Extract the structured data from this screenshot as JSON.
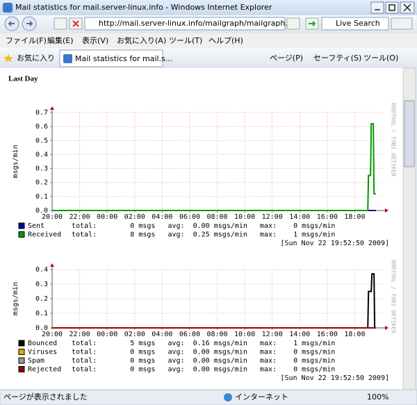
{
  "window": {
    "title": "Mail statistics for mail.server-linux.info - Windows Internet Explorer"
  },
  "address_bar": {
    "url": "http://mail.server-linux.info/mailgraph/mailgraph.cgi",
    "search": "Live Search"
  },
  "menu": [
    "ファイル(F)",
    "編集(E)",
    "表示(V)",
    "お気に入り(A)",
    "ツール(T)",
    "ヘルプ(H)"
  ],
  "favorites_bar": {
    "favorites": "お気に入り",
    "tab": "Mail statistics for mail.s...",
    "tools": [
      "ページ(P)",
      "セーフティ(S)",
      "ツール(O)"
    ]
  },
  "page": {
    "heading": "Last Day"
  },
  "chart_data": [
    {
      "type": "line",
      "ylabel": "msgs/min",
      "watermark": "RRDTOOL / TOBI OETIKER",
      "grid": true,
      "xlim": [
        0,
        24
      ],
      "xticks": [
        {
          "value": 0,
          "label": "20:00"
        },
        {
          "value": 2,
          "label": "22:00"
        },
        {
          "value": 4,
          "label": "00:00"
        },
        {
          "value": 6,
          "label": "02:00"
        },
        {
          "value": 8,
          "label": "04:00"
        },
        {
          "value": 10,
          "label": "06:00"
        },
        {
          "value": 12,
          "label": "08:00"
        },
        {
          "value": 14,
          "label": "10:00"
        },
        {
          "value": 16,
          "label": "12:00"
        },
        {
          "value": 18,
          "label": "14:00"
        },
        {
          "value": 20,
          "label": "16:00"
        },
        {
          "value": 22,
          "label": "18:00"
        }
      ],
      "ylim": [
        0,
        0.7
      ],
      "yticks": [
        {
          "value": 0,
          "label": "0.0"
        },
        {
          "value": 0.1,
          "label": "0.1"
        },
        {
          "value": 0.2,
          "label": "0.2"
        },
        {
          "value": 0.3,
          "label": "0.3"
        },
        {
          "value": 0.4,
          "label": "0.4"
        },
        {
          "value": 0.5,
          "label": "0.5"
        },
        {
          "value": 0.6,
          "label": "0.6"
        },
        {
          "value": 0.7,
          "label": "0.7"
        }
      ],
      "series": [
        {
          "name": "Sent",
          "color": "#000099",
          "stats": "total:        0 msgs   avg:  0.00 msgs/min   max:    0 msgs/min",
          "x": [
            0,
            23.55
          ],
          "values": [
            0,
            0
          ]
        },
        {
          "name": "Received",
          "color": "#009900",
          "stats": "total:        8 msgs   avg:  0.25 msgs/min   max:    1 msgs/min",
          "x": [
            0,
            22.95,
            23.0,
            23.15,
            23.2,
            23.35,
            23.4,
            23.55
          ],
          "values": [
            0,
            0,
            0.25,
            0.25,
            0.62,
            0.62,
            0.12,
            0.12
          ]
        }
      ],
      "timestamp": "[Sun Nov 22 19:52:50 2009]"
    },
    {
      "type": "line",
      "ylabel": "msgs/min",
      "watermark": "RRDTOOL / TOBI OETIKER",
      "grid": true,
      "xlim": [
        0,
        24
      ],
      "xticks": [
        {
          "value": 0,
          "label": "20:00"
        },
        {
          "value": 2,
          "label": "22:00"
        },
        {
          "value": 4,
          "label": "00:00"
        },
        {
          "value": 6,
          "label": "02:00"
        },
        {
          "value": 8,
          "label": "04:00"
        },
        {
          "value": 10,
          "label": "06:00"
        },
        {
          "value": 12,
          "label": "08:00"
        },
        {
          "value": 14,
          "label": "10:00"
        },
        {
          "value": 16,
          "label": "12:00"
        },
        {
          "value": 18,
          "label": "14:00"
        },
        {
          "value": 20,
          "label": "16:00"
        },
        {
          "value": 22,
          "label": "18:00"
        }
      ],
      "ylim": [
        0,
        0.4
      ],
      "yticks": [
        {
          "value": 0,
          "label": "0.0"
        },
        {
          "value": 0.1,
          "label": "0.1"
        },
        {
          "value": 0.2,
          "label": "0.2"
        },
        {
          "value": 0.3,
          "label": "0.3"
        },
        {
          "value": 0.4,
          "label": "0.4"
        }
      ],
      "series": [
        {
          "name": "Bounced",
          "color": "#000000",
          "stats": "total:        5 msgs   avg:  0.16 msgs/min   max:    1 msgs/min",
          "x": [
            0,
            22.95,
            23.0,
            23.2,
            23.25,
            23.4,
            23.45
          ],
          "values": [
            0,
            0,
            0.25,
            0.25,
            0.37,
            0.37,
            0
          ]
        },
        {
          "name": "Viruses",
          "color": "#ddaa00",
          "stats": "total:        0 msgs   avg:  0.00 msgs/min   max:    0 msgs/min",
          "x": [
            0,
            23.55
          ],
          "values": [
            0,
            0
          ]
        },
        {
          "name": "Spam",
          "color": "#999999",
          "stats": "total:        0 msgs   avg:  0.00 msgs/min   max:    0 msgs/min",
          "x": [
            0,
            23.55
          ],
          "values": [
            0,
            0
          ]
        },
        {
          "name": "Rejected",
          "color": "#990000",
          "stats": "total:        0 msgs   avg:  0.00 msgs/min   max:    0 msgs/min",
          "x": [
            0,
            23.55
          ],
          "values": [
            0,
            0
          ]
        }
      ],
      "timestamp": "[Sun Nov 22 19:52:50 2009]"
    }
  ],
  "status_bar": {
    "status": "ページが表示されました",
    "zone": "インターネット",
    "zoom": "100%"
  }
}
